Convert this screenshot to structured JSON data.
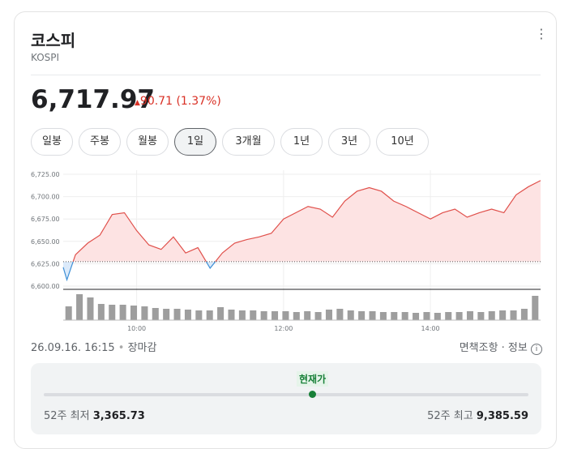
{
  "header": {
    "title": "코스피",
    "subtitle": "KOSPI",
    "price": "6,717.97",
    "change": "90.71 (1.37%)",
    "menu": "⋮"
  },
  "tabs": [
    "일봉",
    "주봉",
    "월봉",
    "1일",
    "3개월",
    "1년",
    "3년",
    "10년"
  ],
  "selected_tab": 3,
  "chart_data": {
    "type": "line",
    "color": "#e0504b",
    "below_color": "#3d8fd6",
    "x": [
      "09:00",
      "09:03",
      "09:10",
      "09:20",
      "09:30",
      "09:40",
      "09:50",
      "10:00",
      "10:10",
      "10:20",
      "10:30",
      "10:40",
      "10:50",
      "11:00",
      "11:10",
      "11:20",
      "11:30",
      "11:40",
      "11:50",
      "12:00",
      "12:10",
      "12:20",
      "12:30",
      "12:40",
      "12:50",
      "13:00",
      "13:10",
      "13:20",
      "13:30",
      "13:40",
      "13:50",
      "14:00",
      "14:10",
      "14:20",
      "14:30",
      "14:40",
      "14:50",
      "15:00",
      "15:10",
      "15:20",
      "15:30"
    ],
    "values": [
      6621,
      6607,
      6635,
      6648,
      6657,
      6680,
      6682,
      6662,
      6646,
      6641,
      6655,
      6637,
      6643,
      6620,
      6637,
      6648,
      6652,
      6655,
      6659,
      6675,
      6682,
      6689,
      6686,
      6677,
      6695,
      6706,
      6710,
      6706,
      6695,
      6689,
      6682,
      6675,
      6682,
      6686,
      6677,
      6682,
      6686,
      6682,
      6702,
      6711,
      6717.97
    ],
    "xlim": [
      "09:00",
      "15:30"
    ],
    "xticks": [
      "10:00",
      "12:00",
      "14:00"
    ],
    "ylim": [
      6600,
      6725
    ],
    "yticks": [
      {
        "value": 6725,
        "label": "6,725.00"
      },
      {
        "value": 6700,
        "label": "6,700.00"
      },
      {
        "value": 6675,
        "label": "6,675.00"
      },
      {
        "value": 6650,
        "label": "6,650.00"
      },
      {
        "value": 6625,
        "label": "6,625.00"
      },
      {
        "value": 6600,
        "label": "6,600.00"
      }
    ],
    "grid": true,
    "volume": {
      "color": "#9e9e9e",
      "ylim": [
        0,
        38
      ],
      "values": [
        17,
        32,
        28,
        20,
        19,
        19,
        18,
        17,
        15,
        14,
        14,
        13,
        12,
        12,
        16,
        13,
        12,
        12,
        11,
        11,
        11,
        10,
        11,
        10,
        13,
        14,
        12,
        11,
        11,
        10,
        10,
        10,
        9,
        10,
        9,
        10,
        10,
        11,
        10,
        11,
        12,
        12,
        14,
        30
      ]
    }
  },
  "footer": {
    "timestamp": "26.09.16. 16:15",
    "status": "장마감",
    "disclaimer": "면책조항 · 정보"
  },
  "range": {
    "current_label": "현재가",
    "low_label": "52주 최저",
    "low": "3,365.73",
    "high_label": "52주 최고",
    "high": "9,385.59"
  }
}
